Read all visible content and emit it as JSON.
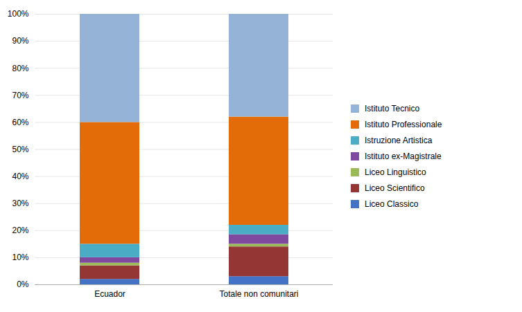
{
  "chart_data": {
    "type": "bar",
    "stacked": true,
    "categories": [
      "Ecuador",
      "Totale non comunitari"
    ],
    "series": [
      {
        "name": "Liceo Classico",
        "color": "#4472C4",
        "values": [
          2.0,
          3.0
        ]
      },
      {
        "name": "Liceo Scientifico",
        "color": "#943634",
        "values": [
          5.0,
          11.0
        ]
      },
      {
        "name": "Liceo Linguistico",
        "color": "#9BBB59",
        "values": [
          1.0,
          1.0
        ]
      },
      {
        "name": "Istituto ex-Magistrale",
        "color": "#7F49A0",
        "values": [
          2.0,
          3.5
        ]
      },
      {
        "name": "Istruzione Artistica",
        "color": "#4BACC6",
        "values": [
          5.0,
          3.5
        ]
      },
      {
        "name": "Istituto Professionale",
        "color": "#E36C09",
        "values": [
          45.0,
          40.0
        ]
      },
      {
        "name": "Istituto Tecnico",
        "color": "#95B3D7",
        "values": [
          40.0,
          38.0
        ]
      }
    ],
    "ylim": [
      0,
      100
    ],
    "yticks": [
      {
        "value": 0,
        "label": "0%"
      },
      {
        "value": 10,
        "label": "10%"
      },
      {
        "value": 20,
        "label": "20%"
      },
      {
        "value": 30,
        "label": "30%"
      },
      {
        "value": 40,
        "label": "40%"
      },
      {
        "value": 50,
        "label": "50%"
      },
      {
        "value": 60,
        "label": "60%"
      },
      {
        "value": 70,
        "label": "70%"
      },
      {
        "value": 80,
        "label": "80%"
      },
      {
        "value": 90,
        "label": "90%"
      },
      {
        "value": 100,
        "label": "100%"
      }
    ],
    "grid": true,
    "legend": "right"
  }
}
